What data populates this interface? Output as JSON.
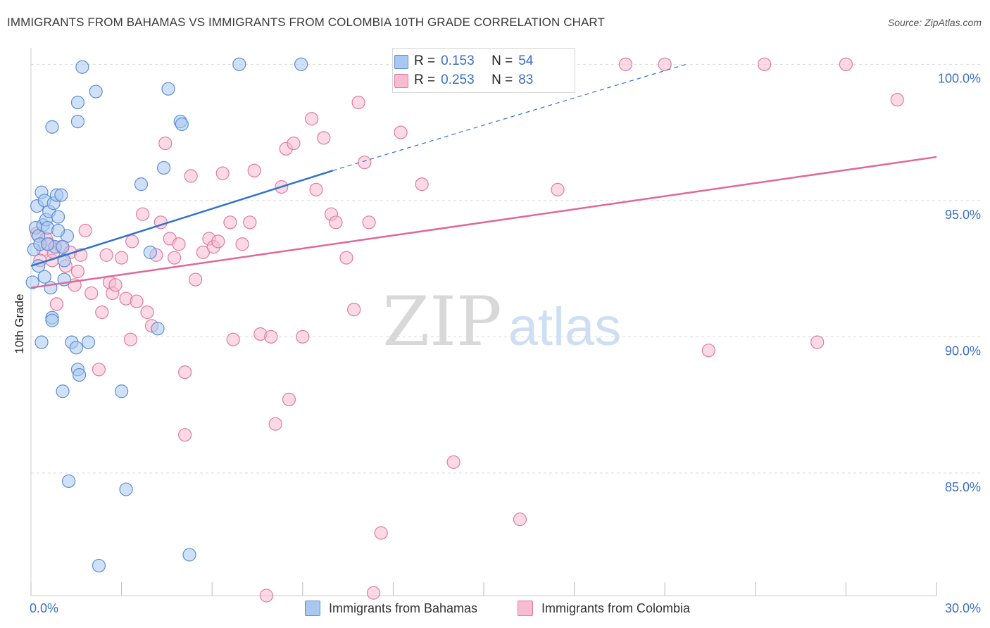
{
  "title": "IMMIGRANTS FROM BAHAMAS VS IMMIGRANTS FROM COLOMBIA 10TH GRADE CORRELATION CHART",
  "source": "Source: ZipAtlas.com",
  "watermark": {
    "zip": "ZIP",
    "atlas": "atlas"
  },
  "colors": {
    "bahamas_fill": "#a9c8f0",
    "bahamas_stroke": "#5b8fd6",
    "bahamas_line": "#2f72cf",
    "colombia_fill": "#f7bcd0",
    "colombia_stroke": "#e07aa0",
    "colombia_line": "#e06898",
    "grid": "#d9d9d9",
    "tick_label": "#3b6fc6"
  },
  "legend_top": {
    "rows": [
      {
        "r_label": "R =",
        "r_value": "0.153",
        "n_label": "N =",
        "n_value": "54",
        "series": "bahamas"
      },
      {
        "r_label": "R =",
        "r_value": "0.253",
        "n_label": "N =",
        "n_value": "83",
        "series": "colombia"
      }
    ]
  },
  "legend_bottom": [
    "Immigrants from Bahamas",
    "Immigrants from Colombia"
  ],
  "chart_data": {
    "type": "scatter",
    "title": "IMMIGRANTS FROM BAHAMAS VS IMMIGRANTS FROM COLOMBIA 10TH GRADE CORRELATION CHART",
    "xlabel": "",
    "ylabel": "10th Grade",
    "xlim": [
      0,
      30
    ],
    "ylim": [
      80.5,
      100.5
    ],
    "x_tick_labels": [
      "0.0%",
      "30.0%"
    ],
    "y_ticks": [
      85,
      90,
      95,
      100
    ],
    "y_tick_labels": [
      "85.0%",
      "90.0%",
      "95.0%",
      "100.0%"
    ],
    "grid": true,
    "legend_position": "top-center",
    "series": [
      {
        "name": "Immigrants from Bahamas",
        "R": 0.153,
        "N": 54,
        "trend": {
          "x": [
            0.0,
            10.0
          ],
          "y": [
            92.6,
            96.1
          ],
          "dashed_to": [
            21.7,
            100.0
          ]
        },
        "points": [
          [
            0.05,
            92.0
          ],
          [
            0.1,
            93.2
          ],
          [
            0.15,
            94.0
          ],
          [
            0.2,
            94.8
          ],
          [
            0.25,
            93.7
          ],
          [
            0.3,
            93.4
          ],
          [
            0.35,
            95.3
          ],
          [
            0.4,
            94.1
          ],
          [
            0.45,
            95.0
          ],
          [
            0.5,
            94.3
          ],
          [
            0.55,
            94.0
          ],
          [
            0.6,
            94.6
          ],
          [
            0.65,
            91.8
          ],
          [
            0.7,
            90.7
          ],
          [
            0.75,
            94.9
          ],
          [
            0.8,
            93.3
          ],
          [
            0.85,
            95.2
          ],
          [
            0.9,
            94.4
          ],
          [
            1.0,
            95.2
          ],
          [
            0.7,
            97.7
          ],
          [
            0.7,
            90.6
          ],
          [
            1.05,
            88.0
          ],
          [
            1.1,
            92.8
          ],
          [
            1.2,
            93.7
          ],
          [
            1.35,
            89.8
          ],
          [
            1.5,
            89.6
          ],
          [
            1.55,
            88.8
          ],
          [
            1.6,
            88.6
          ],
          [
            1.25,
            84.7
          ],
          [
            1.55,
            98.6
          ],
          [
            1.55,
            97.9
          ],
          [
            1.7,
            99.9
          ],
          [
            2.15,
            99.0
          ],
          [
            2.25,
            81.6
          ],
          [
            3.0,
            88.0
          ],
          [
            3.15,
            84.4
          ],
          [
            3.65,
            95.6
          ],
          [
            3.95,
            93.1
          ],
          [
            4.2,
            90.3
          ],
          [
            4.4,
            96.2
          ],
          [
            4.55,
            99.1
          ],
          [
            4.95,
            97.9
          ],
          [
            5.0,
            97.8
          ],
          [
            5.25,
            82.0
          ],
          [
            6.9,
            100.0
          ],
          [
            8.95,
            100.0
          ],
          [
            0.45,
            92.2
          ],
          [
            0.35,
            89.8
          ],
          [
            1.9,
            89.8
          ],
          [
            0.9,
            93.9
          ],
          [
            0.55,
            93.4
          ],
          [
            1.1,
            92.1
          ],
          [
            0.25,
            92.6
          ],
          [
            1.05,
            93.3
          ]
        ]
      },
      {
        "name": "Immigrants from Colombia",
        "R": 0.253,
        "N": 83,
        "trend": {
          "x": [
            0.0,
            30.0
          ],
          "y": [
            91.8,
            96.6
          ]
        },
        "points": [
          [
            0.2,
            93.8
          ],
          [
            0.4,
            93.2
          ],
          [
            0.5,
            93.6
          ],
          [
            0.6,
            93.4
          ],
          [
            0.7,
            92.8
          ],
          [
            0.75,
            93.1
          ],
          [
            0.85,
            91.2
          ],
          [
            1.0,
            93.3
          ],
          [
            1.15,
            92.6
          ],
          [
            1.3,
            93.1
          ],
          [
            1.45,
            91.9
          ],
          [
            1.55,
            92.4
          ],
          [
            1.65,
            93.0
          ],
          [
            1.8,
            93.9
          ],
          [
            2.0,
            91.6
          ],
          [
            2.25,
            88.8
          ],
          [
            2.35,
            90.9
          ],
          [
            2.5,
            93.0
          ],
          [
            2.6,
            92.0
          ],
          [
            2.7,
            91.6
          ],
          [
            3.0,
            92.9
          ],
          [
            3.15,
            91.4
          ],
          [
            3.3,
            89.9
          ],
          [
            3.35,
            93.5
          ],
          [
            3.5,
            91.3
          ],
          [
            3.7,
            94.5
          ],
          [
            3.85,
            90.9
          ],
          [
            4.0,
            90.4
          ],
          [
            4.15,
            93.0
          ],
          [
            4.3,
            94.2
          ],
          [
            4.45,
            97.1
          ],
          [
            4.6,
            93.6
          ],
          [
            4.75,
            92.9
          ],
          [
            4.9,
            93.4
          ],
          [
            5.1,
            88.7
          ],
          [
            5.1,
            86.4
          ],
          [
            5.3,
            95.9
          ],
          [
            5.45,
            92.1
          ],
          [
            5.7,
            93.1
          ],
          [
            5.9,
            93.6
          ],
          [
            6.05,
            93.3
          ],
          [
            6.2,
            93.5
          ],
          [
            6.35,
            96.0
          ],
          [
            6.6,
            94.2
          ],
          [
            6.7,
            89.9
          ],
          [
            7.0,
            93.4
          ],
          [
            7.25,
            94.2
          ],
          [
            7.4,
            96.1
          ],
          [
            7.6,
            90.1
          ],
          [
            7.8,
            80.5
          ],
          [
            7.95,
            90.0
          ],
          [
            8.1,
            86.8
          ],
          [
            8.3,
            95.5
          ],
          [
            8.45,
            96.9
          ],
          [
            8.55,
            87.7
          ],
          [
            8.7,
            97.1
          ],
          [
            9.0,
            90.0
          ],
          [
            9.3,
            98.0
          ],
          [
            9.45,
            95.4
          ],
          [
            9.7,
            97.3
          ],
          [
            9.95,
            94.5
          ],
          [
            10.1,
            94.2
          ],
          [
            10.45,
            92.9
          ],
          [
            10.7,
            91.0
          ],
          [
            10.85,
            98.6
          ],
          [
            11.05,
            96.4
          ],
          [
            11.2,
            94.2
          ],
          [
            11.35,
            80.6
          ],
          [
            11.6,
            82.8
          ],
          [
            12.25,
            97.5
          ],
          [
            12.95,
            95.6
          ],
          [
            14.0,
            85.4
          ],
          [
            16.2,
            83.3
          ],
          [
            17.45,
            95.4
          ],
          [
            19.7,
            100.0
          ],
          [
            21.0,
            100.0
          ],
          [
            22.45,
            89.5
          ],
          [
            24.3,
            100.0
          ],
          [
            26.05,
            89.8
          ],
          [
            27.0,
            100.0
          ],
          [
            28.7,
            98.7
          ],
          [
            0.3,
            92.8
          ],
          [
            2.8,
            91.9
          ]
        ]
      }
    ]
  }
}
